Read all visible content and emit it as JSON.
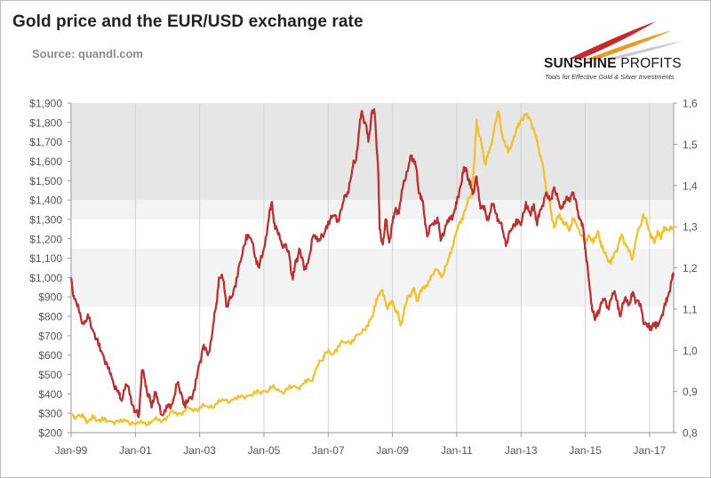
{
  "header": {
    "title": "Gold price and the EUR/USD exchange rate",
    "subtitle": "Source: quandl.com"
  },
  "logo": {
    "name_bold": "SUNSHINE",
    "name_thin": "PROFITS",
    "tagline": "Tools for Effective Gold & Silver Investments"
  },
  "colors": {
    "gold": "#b83232",
    "eurusd": "#f2c12e",
    "band_dark": "#e6e6e6",
    "band_light": "#f3f3f3",
    "grid": "#d2d2d2",
    "axis": "#9a9a9a"
  },
  "chart_data": {
    "type": "line",
    "x_ticks": [
      "Jan-99",
      "Jan-01",
      "Jan-03",
      "Jan-05",
      "Jan-07",
      "Jan-09",
      "Jan-11",
      "Jan-13",
      "Jan-15",
      "Jan-17"
    ],
    "x_range": [
      1999.0,
      2017.75
    ],
    "y_left": {
      "ticks": [
        "$200",
        "$300",
        "$400",
        "$500",
        "$600",
        "$700",
        "$800",
        "$900",
        "$1,000",
        "$1,100",
        "$1,200",
        "$1,300",
        "$1,400",
        "$1,500",
        "$1,600",
        "$1,700",
        "$1,800",
        "$1,900"
      ],
      "range": [
        200,
        1900
      ]
    },
    "y_right": {
      "ticks": [
        "0,8",
        "0,9",
        "1,0",
        "1,1",
        "1,2",
        "1,3",
        "1,4",
        "1,5",
        "1,6"
      ],
      "range": [
        0.8,
        1.6
      ]
    },
    "series": [
      {
        "key": "gold",
        "axis": "left",
        "values": [
          [
            1999.0,
            1000
          ],
          [
            1999.1,
            890
          ],
          [
            1999.25,
            820
          ],
          [
            1999.4,
            760
          ],
          [
            1999.55,
            790
          ],
          [
            1999.7,
            720
          ],
          [
            1999.85,
            650
          ],
          [
            2000.0,
            600
          ],
          [
            2000.15,
            530
          ],
          [
            2000.3,
            470
          ],
          [
            2000.45,
            410
          ],
          [
            2000.55,
            370
          ],
          [
            2000.7,
            450
          ],
          [
            2000.85,
            390
          ],
          [
            2001.0,
            310
          ],
          [
            2001.1,
            280
          ],
          [
            2001.2,
            520
          ],
          [
            2001.3,
            470
          ],
          [
            2001.4,
            400
          ],
          [
            2001.5,
            330
          ],
          [
            2001.6,
            410
          ],
          [
            2001.7,
            360
          ],
          [
            2001.85,
            290
          ],
          [
            2002.0,
            330
          ],
          [
            2002.15,
            350
          ],
          [
            2002.3,
            450
          ],
          [
            2002.45,
            390
          ],
          [
            2002.55,
            330
          ],
          [
            2002.7,
            380
          ],
          [
            2002.85,
            420
          ],
          [
            2003.0,
            560
          ],
          [
            2003.1,
            640
          ],
          [
            2003.25,
            600
          ],
          [
            2003.4,
            720
          ],
          [
            2003.5,
            840
          ],
          [
            2003.6,
            1000
          ],
          [
            2003.75,
            980
          ],
          [
            2003.85,
            850
          ],
          [
            2004.0,
            900
          ],
          [
            2004.15,
            1000
          ],
          [
            2004.3,
            1100
          ],
          [
            2004.45,
            1220
          ],
          [
            2004.6,
            1200
          ],
          [
            2004.75,
            1100
          ],
          [
            2004.85,
            1050
          ],
          [
            2005.0,
            1150
          ],
          [
            2005.15,
            1300
          ],
          [
            2005.25,
            1390
          ],
          [
            2005.35,
            1250
          ],
          [
            2005.5,
            1200
          ],
          [
            2005.65,
            1160
          ],
          [
            2005.8,
            1100
          ],
          [
            2005.9,
            990
          ],
          [
            2006.0,
            1080
          ],
          [
            2006.1,
            1150
          ],
          [
            2006.25,
            1040
          ],
          [
            2006.4,
            1100
          ],
          [
            2006.55,
            1220
          ],
          [
            2006.7,
            1200
          ],
          [
            2006.85,
            1210
          ],
          [
            2007.0,
            1290
          ],
          [
            2007.15,
            1320
          ],
          [
            2007.3,
            1300
          ],
          [
            2007.45,
            1380
          ],
          [
            2007.6,
            1440
          ],
          [
            2007.75,
            1560
          ],
          [
            2007.85,
            1600
          ],
          [
            2007.95,
            1740
          ],
          [
            2008.05,
            1860
          ],
          [
            2008.15,
            1800
          ],
          [
            2008.25,
            1700
          ],
          [
            2008.35,
            1850
          ],
          [
            2008.45,
            1840
          ],
          [
            2008.55,
            1580
          ],
          [
            2008.6,
            1250
          ],
          [
            2008.7,
            1170
          ],
          [
            2008.8,
            1300
          ],
          [
            2008.9,
            1180
          ],
          [
            2009.0,
            1280
          ],
          [
            2009.1,
            1360
          ],
          [
            2009.2,
            1330
          ],
          [
            2009.35,
            1500
          ],
          [
            2009.5,
            1570
          ],
          [
            2009.6,
            1630
          ],
          [
            2009.7,
            1600
          ],
          [
            2009.8,
            1470
          ],
          [
            2009.9,
            1420
          ],
          [
            2010.0,
            1310
          ],
          [
            2010.1,
            1220
          ],
          [
            2010.25,
            1280
          ],
          [
            2010.4,
            1310
          ],
          [
            2010.5,
            1190
          ],
          [
            2010.65,
            1270
          ],
          [
            2010.8,
            1300
          ],
          [
            2010.9,
            1330
          ],
          [
            2011.0,
            1380
          ],
          [
            2011.1,
            1460
          ],
          [
            2011.2,
            1540
          ],
          [
            2011.3,
            1560
          ],
          [
            2011.4,
            1480
          ],
          [
            2011.5,
            1430
          ],
          [
            2011.6,
            1520
          ],
          [
            2011.7,
            1400
          ],
          [
            2011.8,
            1360
          ],
          [
            2011.9,
            1330
          ],
          [
            2012.0,
            1310
          ],
          [
            2012.15,
            1380
          ],
          [
            2012.3,
            1300
          ],
          [
            2012.45,
            1230
          ],
          [
            2012.55,
            1180
          ],
          [
            2012.7,
            1250
          ],
          [
            2012.85,
            1300
          ],
          [
            2013.0,
            1270
          ],
          [
            2013.15,
            1390
          ],
          [
            2013.3,
            1320
          ],
          [
            2013.4,
            1380
          ],
          [
            2013.5,
            1270
          ],
          [
            2013.6,
            1350
          ],
          [
            2013.75,
            1420
          ],
          [
            2013.9,
            1400
          ],
          [
            2014.0,
            1450
          ],
          [
            2014.15,
            1400
          ],
          [
            2014.3,
            1360
          ],
          [
            2014.45,
            1400
          ],
          [
            2014.6,
            1440
          ],
          [
            2014.75,
            1350
          ],
          [
            2014.85,
            1300
          ],
          [
            2014.95,
            1230
          ],
          [
            2015.0,
            1150
          ],
          [
            2015.1,
            1000
          ],
          [
            2015.2,
            860
          ],
          [
            2015.3,
            780
          ],
          [
            2015.4,
            830
          ],
          [
            2015.55,
            890
          ],
          [
            2015.7,
            850
          ],
          [
            2015.85,
            920
          ],
          [
            2016.0,
            880
          ],
          [
            2016.1,
            800
          ],
          [
            2016.25,
            900
          ],
          [
            2016.4,
            870
          ],
          [
            2016.5,
            920
          ],
          [
            2016.6,
            880
          ],
          [
            2016.75,
            830
          ],
          [
            2016.85,
            760
          ],
          [
            2017.0,
            730
          ],
          [
            2017.1,
            760
          ],
          [
            2017.2,
            740
          ],
          [
            2017.35,
            790
          ],
          [
            2017.5,
            860
          ],
          [
            2017.6,
            920
          ],
          [
            2017.7,
            990
          ],
          [
            2017.75,
            1020
          ]
        ]
      },
      {
        "key": "eurusd",
        "axis": "right",
        "values": [
          [
            1999.0,
            0.845
          ],
          [
            1999.2,
            0.84
          ],
          [
            1999.4,
            0.835
          ],
          [
            1999.55,
            0.828
          ],
          [
            1999.7,
            0.835
          ],
          [
            1999.85,
            0.83
          ],
          [
            2000.0,
            0.83
          ],
          [
            2000.25,
            0.828
          ],
          [
            2000.5,
            0.825
          ],
          [
            2000.75,
            0.83
          ],
          [
            2001.0,
            0.82
          ],
          [
            2001.3,
            0.825
          ],
          [
            2001.5,
            0.826
          ],
          [
            2001.75,
            0.832
          ],
          [
            2002.0,
            0.84
          ],
          [
            2002.25,
            0.85
          ],
          [
            2002.5,
            0.852
          ],
          [
            2002.75,
            0.858
          ],
          [
            2003.0,
            0.862
          ],
          [
            2003.25,
            0.862
          ],
          [
            2003.5,
            0.87
          ],
          [
            2003.75,
            0.878
          ],
          [
            2004.0,
            0.88
          ],
          [
            2004.25,
            0.885
          ],
          [
            2004.5,
            0.89
          ],
          [
            2004.75,
            0.895
          ],
          [
            2005.0,
            0.9
          ],
          [
            2005.25,
            0.908
          ],
          [
            2005.5,
            0.9
          ],
          [
            2005.75,
            0.905
          ],
          [
            2006.0,
            0.91
          ],
          [
            2006.25,
            0.92
          ],
          [
            2006.45,
            0.925
          ],
          [
            2006.6,
            0.95
          ],
          [
            2006.8,
            0.975
          ],
          [
            2006.9,
            0.995
          ],
          [
            2007.1,
            0.99
          ],
          [
            2007.3,
            1.01
          ],
          [
            2007.5,
            1.02
          ],
          [
            2007.75,
            1.025
          ],
          [
            2008.0,
            1.04
          ],
          [
            2008.2,
            1.06
          ],
          [
            2008.4,
            1.085
          ],
          [
            2008.5,
            1.125
          ],
          [
            2008.65,
            1.145
          ],
          [
            2008.75,
            1.13
          ],
          [
            2008.85,
            1.1
          ],
          [
            2009.0,
            1.12
          ],
          [
            2009.15,
            1.09
          ],
          [
            2009.25,
            1.06
          ],
          [
            2009.35,
            1.09
          ],
          [
            2009.5,
            1.13
          ],
          [
            2009.65,
            1.15
          ],
          [
            2009.75,
            1.12
          ],
          [
            2009.85,
            1.14
          ],
          [
            2010.0,
            1.15
          ],
          [
            2010.2,
            1.18
          ],
          [
            2010.4,
            1.195
          ],
          [
            2010.55,
            1.18
          ],
          [
            2010.7,
            1.21
          ],
          [
            2010.85,
            1.25
          ],
          [
            2011.0,
            1.29
          ],
          [
            2011.15,
            1.32
          ],
          [
            2011.3,
            1.35
          ],
          [
            2011.45,
            1.38
          ],
          [
            2011.55,
            1.46
          ],
          [
            2011.62,
            1.56
          ],
          [
            2011.7,
            1.52
          ],
          [
            2011.8,
            1.49
          ],
          [
            2011.9,
            1.45
          ],
          [
            2012.0,
            1.48
          ],
          [
            2012.15,
            1.53
          ],
          [
            2012.3,
            1.58
          ],
          [
            2012.45,
            1.51
          ],
          [
            2012.6,
            1.48
          ],
          [
            2012.75,
            1.51
          ],
          [
            2012.9,
            1.54
          ],
          [
            2013.0,
            1.56
          ],
          [
            2013.15,
            1.57
          ],
          [
            2013.3,
            1.56
          ],
          [
            2013.45,
            1.52
          ],
          [
            2013.55,
            1.49
          ],
          [
            2013.65,
            1.46
          ],
          [
            2013.75,
            1.41
          ],
          [
            2013.85,
            1.37
          ],
          [
            2013.95,
            1.33
          ],
          [
            2014.05,
            1.3
          ],
          [
            2014.2,
            1.33
          ],
          [
            2014.35,
            1.31
          ],
          [
            2014.5,
            1.29
          ],
          [
            2014.6,
            1.32
          ],
          [
            2014.75,
            1.3
          ],
          [
            2014.9,
            1.28
          ],
          [
            2015.0,
            1.26
          ],
          [
            2015.1,
            1.28
          ],
          [
            2015.25,
            1.26
          ],
          [
            2015.4,
            1.29
          ],
          [
            2015.5,
            1.25
          ],
          [
            2015.65,
            1.23
          ],
          [
            2015.8,
            1.21
          ],
          [
            2015.95,
            1.24
          ],
          [
            2016.05,
            1.26
          ],
          [
            2016.15,
            1.28
          ],
          [
            2016.3,
            1.25
          ],
          [
            2016.45,
            1.22
          ],
          [
            2016.55,
            1.26
          ],
          [
            2016.7,
            1.3
          ],
          [
            2016.8,
            1.33
          ],
          [
            2016.95,
            1.3
          ],
          [
            2017.05,
            1.28
          ],
          [
            2017.15,
            1.26
          ],
          [
            2017.25,
            1.29
          ],
          [
            2017.35,
            1.27
          ],
          [
            2017.45,
            1.3
          ],
          [
            2017.6,
            1.29
          ],
          [
            2017.75,
            1.3
          ]
        ]
      }
    ],
    "bands": [
      {
        "from": 1400,
        "to": 1900,
        "shade": "dark"
      },
      {
        "from": 1300,
        "to": 1400,
        "shade": "light"
      },
      {
        "from": 850,
        "to": 1150,
        "shade": "light"
      }
    ],
    "grid": "vertical",
    "legend": "none"
  }
}
